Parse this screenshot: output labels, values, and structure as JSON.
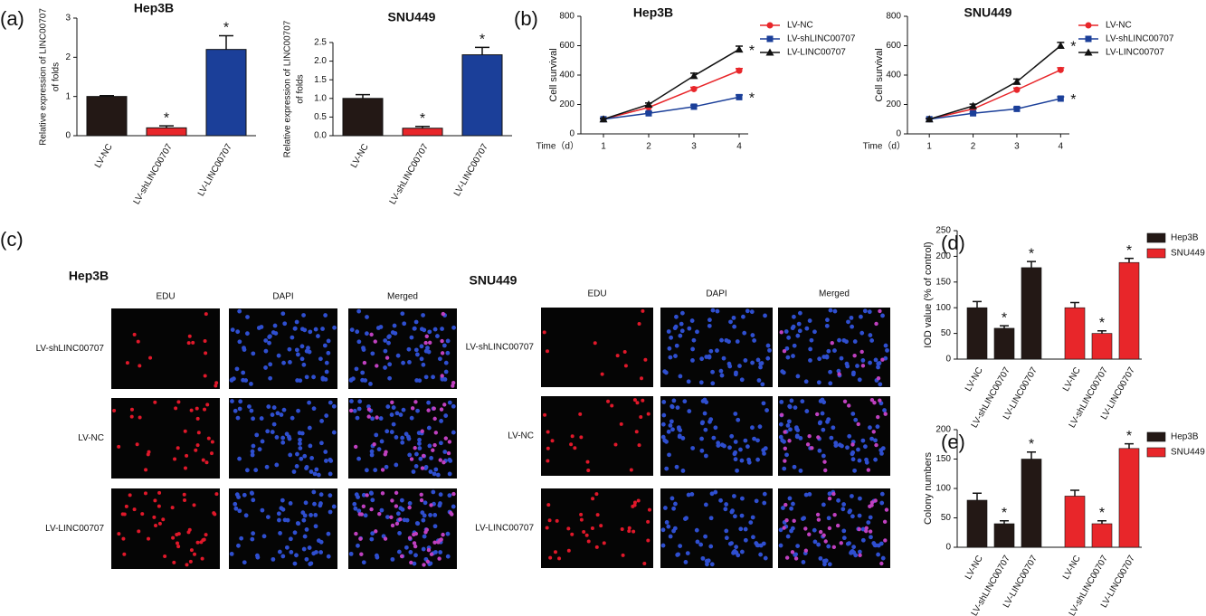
{
  "panel_labels": [
    "(a)",
    "(b)",
    "(c)",
    "(d)",
    "(e)"
  ],
  "chart_data": [
    {
      "type": "bar",
      "title": "Hep3B",
      "ylabel": [
        "Relative expression of LINC00707",
        "of folds"
      ],
      "categories": [
        "LV-NC",
        "LV-shLINC00707",
        "LV-LINC00707"
      ],
      "values": [
        1.0,
        0.2,
        2.2
      ],
      "error": [
        0.02,
        0.05,
        0.35
      ],
      "colors": [
        "#231815",
        "#e8262a",
        "#1b3f99"
      ],
      "ylim": [
        0,
        3
      ],
      "yticks": [
        0,
        1,
        2,
        3
      ],
      "annotations": [
        {
          "category": "LV-shLINC00707",
          "text": "*"
        },
        {
          "category": "LV-LINC00707",
          "text": "*"
        }
      ]
    },
    {
      "type": "bar",
      "title": "SNU449",
      "ylabel": [
        "Relative expression of LINC00707",
        "of folds"
      ],
      "categories": [
        "LV-NC",
        "LV-shLINC00707",
        "LV-LINC00707"
      ],
      "values": [
        1.0,
        0.2,
        2.17
      ],
      "error": [
        0.1,
        0.05,
        0.2
      ],
      "colors": [
        "#231815",
        "#e8262a",
        "#1b3f99"
      ],
      "ylim": [
        0,
        2.5
      ],
      "yticks": [
        {
          "value": 0,
          "label": "0.0"
        },
        0.5,
        {
          "value": 1,
          "label": "1.0"
        },
        1.5,
        {
          "value": 2,
          "label": "2.0"
        },
        2.5
      ],
      "annotations": [
        {
          "category": "LV-shLINC00707",
          "text": "*"
        },
        {
          "category": "LV-LINC00707",
          "text": "*"
        }
      ]
    },
    {
      "type": "line",
      "title": "Hep3B",
      "ylabel": "Cell survival",
      "xlabel": "Time（d）",
      "x": [
        1,
        2,
        3,
        4
      ],
      "xlim": [
        0.5,
        4.2
      ],
      "xticks": [
        1,
        2,
        3,
        4
      ],
      "ylim": [
        0,
        800
      ],
      "yticks": [
        0,
        200,
        400,
        600,
        800
      ],
      "series": [
        {
          "name": "LV-NC",
          "color": "#e8262a",
          "marker": "circle",
          "values": [
            100,
            180,
            305,
            430
          ],
          "error": [
            5,
            10,
            12,
            15
          ]
        },
        {
          "name": "LV-shLINC00707",
          "color": "#1b3f99",
          "marker": "square",
          "values": [
            100,
            140,
            185,
            250
          ],
          "error": [
            5,
            8,
            10,
            15
          ]
        },
        {
          "name": "LV-LINC00707",
          "color": "#111111",
          "marker": "triangle",
          "values": [
            100,
            200,
            395,
            575
          ],
          "error": [
            5,
            10,
            18,
            22
          ]
        }
      ],
      "annotations": [
        {
          "series": "LV-shLINC00707",
          "text": "*"
        },
        {
          "series": "LV-LINC00707",
          "text": "*"
        }
      ]
    },
    {
      "type": "line",
      "title": "SNU449",
      "ylabel": "Cell survival",
      "xlabel": "Time（d）",
      "x": [
        1,
        2,
        3,
        4
      ],
      "xlim": [
        0.5,
        4.2
      ],
      "xticks": [
        1,
        2,
        3,
        4
      ],
      "ylim": [
        0,
        800
      ],
      "yticks": [
        0,
        200,
        400,
        600,
        800
      ],
      "series": [
        {
          "name": "LV-NC",
          "color": "#e8262a",
          "marker": "circle",
          "values": [
            100,
            170,
            300,
            435
          ],
          "error": [
            5,
            10,
            12,
            15
          ]
        },
        {
          "name": "LV-shLINC00707",
          "color": "#1b3f99",
          "marker": "square",
          "values": [
            100,
            140,
            170,
            240
          ],
          "error": [
            5,
            8,
            10,
            12
          ]
        },
        {
          "name": "LV-LINC00707",
          "color": "#111111",
          "marker": "triangle",
          "values": [
            100,
            190,
            355,
            600
          ],
          "error": [
            5,
            12,
            18,
            22
          ]
        }
      ],
      "annotations": [
        {
          "series": "LV-shLINC00707",
          "text": "*"
        },
        {
          "series": "LV-LINC00707",
          "text": "*"
        }
      ]
    },
    {
      "type": "grouped_bar",
      "ylabel": "IOD value (% of control)",
      "categories": [
        "LV-NC",
        "LV-shLINC00707",
        "LV-LINC00707"
      ],
      "ylim": [
        0,
        250
      ],
      "yticks": [
        0,
        50,
        100,
        150,
        200,
        250
      ],
      "series": [
        {
          "name": "Hep3B",
          "color": "#231815",
          "values": [
            100,
            60,
            178
          ],
          "error": [
            12,
            5,
            12
          ]
        },
        {
          "name": "SNU449",
          "color": "#e8262a",
          "values": [
            100,
            50,
            188
          ],
          "error": [
            10,
            5,
            8
          ]
        }
      ],
      "annotations": [
        {
          "series": "Hep3B",
          "category": "LV-shLINC00707",
          "text": "*"
        },
        {
          "series": "Hep3B",
          "category": "LV-LINC00707",
          "text": "*"
        },
        {
          "series": "SNU449",
          "category": "LV-shLINC00707",
          "text": "*"
        },
        {
          "series": "SNU449",
          "category": "LV-LINC00707",
          "text": "*"
        }
      ]
    },
    {
      "type": "grouped_bar",
      "ylabel": "Colony numbers",
      "categories": [
        "LV-NC",
        "LV-shLINC00707",
        "LV-LINC00707"
      ],
      "ylim": [
        0,
        200
      ],
      "yticks": [
        0,
        50,
        100,
        150,
        200
      ],
      "series": [
        {
          "name": "Hep3B",
          "color": "#231815",
          "values": [
            80,
            40,
            150
          ],
          "error": [
            12,
            5,
            12
          ]
        },
        {
          "name": "SNU449",
          "color": "#e8262a",
          "values": [
            87,
            40,
            168
          ],
          "error": [
            10,
            5,
            8
          ]
        }
      ],
      "annotations": [
        {
          "series": "Hep3B",
          "category": "LV-shLINC00707",
          "text": "*"
        },
        {
          "series": "Hep3B",
          "category": "LV-LINC00707",
          "text": "*"
        },
        {
          "series": "SNU449",
          "category": "LV-shLINC00707",
          "text": "*"
        },
        {
          "series": "SNU449",
          "category": "LV-LINC00707",
          "text": "*"
        }
      ]
    }
  ],
  "microscopy": [
    {
      "title": "Hep3B",
      "columns": [
        "EDU",
        "DAPI",
        "Merged"
      ],
      "rows": [
        "LV-shLINC00707",
        "LV-NC",
        "LV-LINC00707"
      ]
    },
    {
      "title": "SNU449",
      "columns": [
        "EDU",
        "DAPI",
        "Merged"
      ],
      "rows": [
        "LV-shLINC00707",
        "LV-NC",
        "LV-LINC00707"
      ]
    }
  ]
}
